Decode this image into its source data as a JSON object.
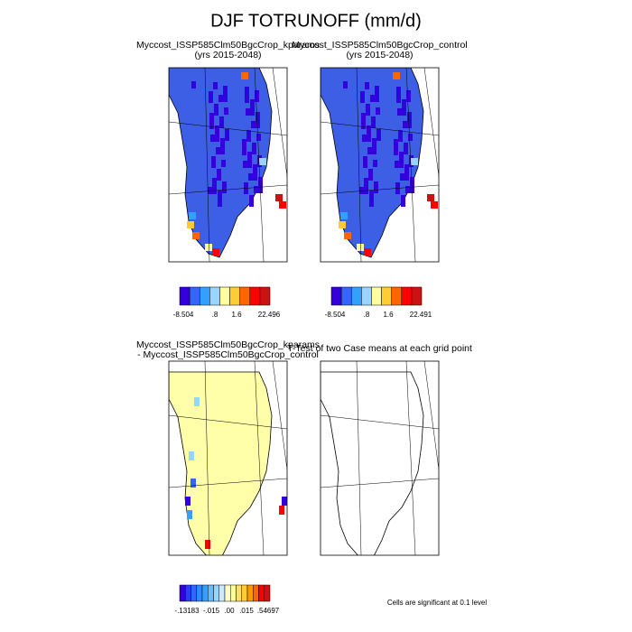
{
  "title": "DJF TOTRUNOFF (mm/d)",
  "panels": [
    {
      "title": "Myccost_ISSP585Clm50BgcCrop_kparams",
      "subtitle": "(yrs 2015-2048)",
      "colorbar_labels": [
        "-8.504",
        ".8",
        "1.6",
        "22.496"
      ]
    },
    {
      "title": "Myccost_ISSP585Clm50BgcCrop_control",
      "subtitle": "(yrs 2015-2048)",
      "colorbar_labels": [
        "-8.504",
        ".8",
        "1.6",
        "22.491"
      ]
    },
    {
      "title": "Myccost_ISSP585Clm50BgcCrop_kparams",
      "subtitle": "- Myccost_ISSP585Clm50BgcCrop_control",
      "colorbar_labels": [
        "-.13183",
        "-.015",
        ".00",
        ".015",
        ".54697"
      ]
    },
    {
      "title": "T-Test of two Case means at each grid point",
      "note": "Cells are significant at 0.1 level"
    }
  ]
}
